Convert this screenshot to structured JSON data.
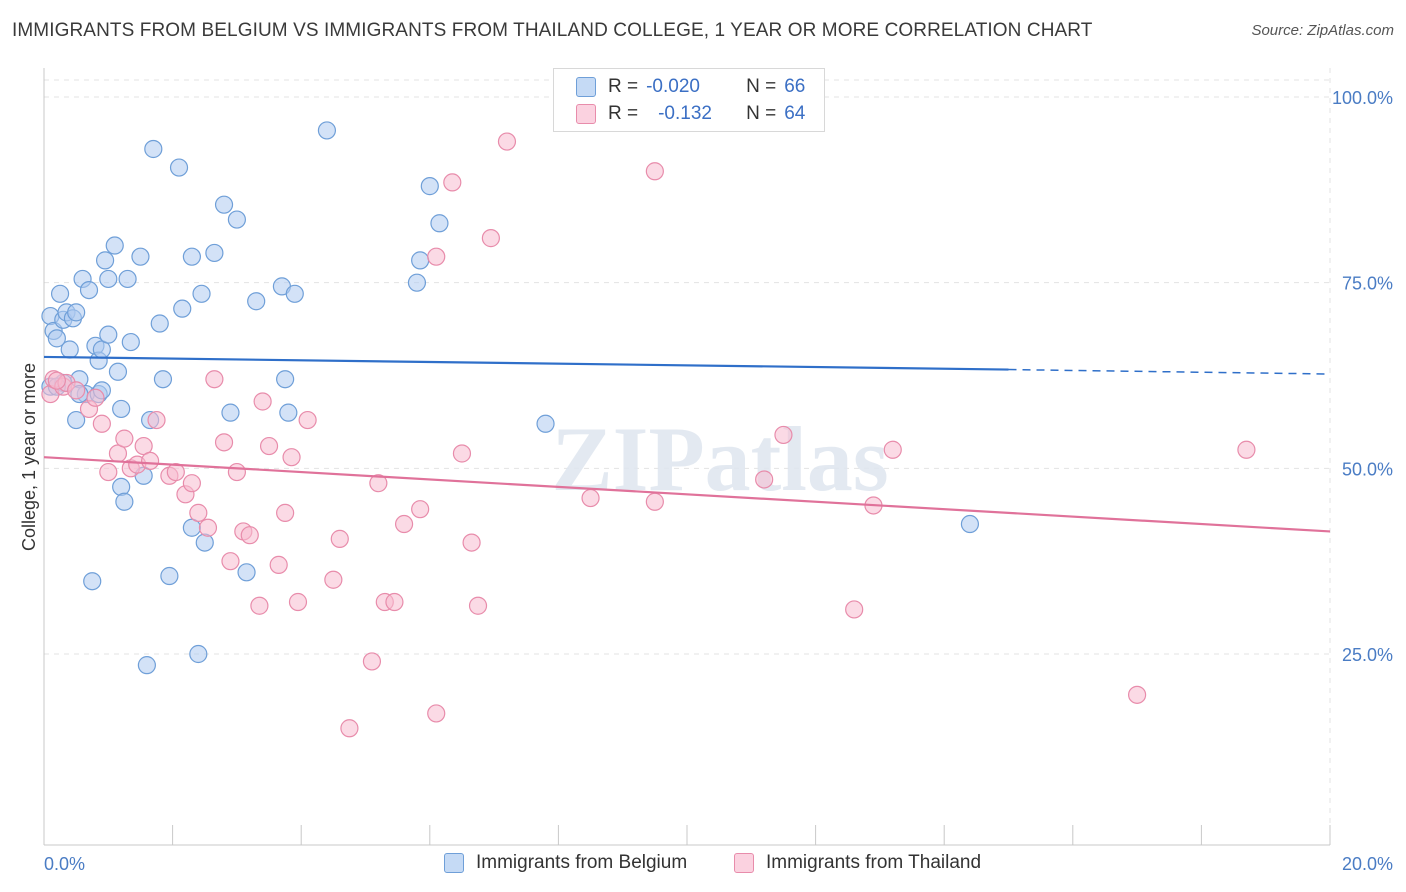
{
  "title": "IMMIGRANTS FROM BELGIUM VS IMMIGRANTS FROM THAILAND COLLEGE, 1 YEAR OR MORE CORRELATION CHART",
  "source": "Source: ZipAtlas.com",
  "watermark": "ZIPatlas",
  "legend": {
    "r_label": "R =",
    "n_label": "N =",
    "belgium": {
      "r": "-0.020",
      "n": "66"
    },
    "thailand": {
      "r": "-0.132",
      "n": "64"
    }
  },
  "colors": {
    "belgium_fill": "#aecbf0",
    "belgium_stroke": "#6f9fd8",
    "belgium_line": "#2f6fc9",
    "thailand_fill": "#f7bcd0",
    "thailand_stroke": "#e88cab",
    "thailand_line": "#e0729a",
    "axis_text": "#4a7cc4",
    "grid": "#e3e3e3"
  },
  "chart_data": {
    "type": "scatter",
    "title": "IMMIGRANTS FROM BELGIUM VS IMMIGRANTS FROM THAILAND COLLEGE, 1 YEAR OR MORE CORRELATION CHART",
    "xlabel": "",
    "ylabel": "College, 1 year or more",
    "xlim": [
      0,
      20
    ],
    "ylim": [
      0,
      105
    ],
    "x_tick_labels": [
      "0.0%",
      "20.0%"
    ],
    "y_ticks": [
      25,
      50,
      75,
      100
    ],
    "y_tick_labels": [
      "25.0%",
      "50.0%",
      "75.0%",
      "100.0%"
    ],
    "series": [
      {
        "name": "Immigrants from Belgium",
        "points": [
          [
            0.1,
            70.5
          ],
          [
            0.15,
            68.5
          ],
          [
            0.2,
            67.5
          ],
          [
            0.25,
            73.5
          ],
          [
            0.3,
            70
          ],
          [
            0.35,
            71
          ],
          [
            0.4,
            66
          ],
          [
            0.45,
            70.2
          ],
          [
            0.5,
            71
          ],
          [
            0.55,
            62
          ],
          [
            0.5,
            56.5
          ],
          [
            0.6,
            75.5
          ],
          [
            0.65,
            60
          ],
          [
            0.7,
            74
          ],
          [
            0.75,
            34.8
          ],
          [
            0.8,
            66.5
          ],
          [
            0.85,
            60
          ],
          [
            0.85,
            64.5
          ],
          [
            0.9,
            66
          ],
          [
            0.95,
            78
          ],
          [
            1.0,
            68
          ],
          [
            1.0,
            75.5
          ],
          [
            1.1,
            80
          ],
          [
            1.15,
            63
          ],
          [
            1.2,
            58
          ],
          [
            1.2,
            47.5
          ],
          [
            1.25,
            45.5
          ],
          [
            1.3,
            75.5
          ],
          [
            1.35,
            67
          ],
          [
            1.5,
            78.5
          ],
          [
            1.55,
            49
          ],
          [
            1.6,
            23.5
          ],
          [
            1.65,
            56.5
          ],
          [
            1.7,
            93
          ],
          [
            1.8,
            69.5
          ],
          [
            1.85,
            62
          ],
          [
            1.95,
            35.5
          ],
          [
            2.1,
            90.5
          ],
          [
            2.15,
            71.5
          ],
          [
            2.3,
            78.5
          ],
          [
            2.3,
            42
          ],
          [
            2.4,
            25
          ],
          [
            2.45,
            73.5
          ],
          [
            2.5,
            40
          ],
          [
            2.65,
            79
          ],
          [
            2.8,
            85.5
          ],
          [
            2.9,
            57.5
          ],
          [
            3.0,
            83.5
          ],
          [
            3.15,
            36
          ],
          [
            3.3,
            72.5
          ],
          [
            3.7,
            74.5
          ],
          [
            3.75,
            62
          ],
          [
            3.8,
            57.5
          ],
          [
            3.9,
            73.5
          ],
          [
            4.4,
            95.5
          ],
          [
            5.8,
            75
          ],
          [
            5.85,
            78
          ],
          [
            6.0,
            88
          ],
          [
            6.15,
            83
          ],
          [
            7.8,
            56
          ],
          [
            14.4,
            42.5
          ],
          [
            0.1,
            61
          ],
          [
            0.3,
            61.5
          ],
          [
            0.2,
            61
          ],
          [
            0.55,
            60
          ],
          [
            0.9,
            60.5
          ]
        ]
      },
      {
        "name": "Immigrants from Thailand",
        "points": [
          [
            0.1,
            60
          ],
          [
            0.15,
            62
          ],
          [
            0.3,
            61
          ],
          [
            0.35,
            61.5
          ],
          [
            0.5,
            60.5
          ],
          [
            0.7,
            58
          ],
          [
            0.8,
            59.5
          ],
          [
            0.9,
            56
          ],
          [
            1.0,
            49.5
          ],
          [
            1.15,
            52
          ],
          [
            1.25,
            54
          ],
          [
            1.35,
            50
          ],
          [
            1.45,
            50.5
          ],
          [
            1.55,
            53
          ],
          [
            1.65,
            51
          ],
          [
            1.75,
            56.5
          ],
          [
            1.95,
            49
          ],
          [
            2.05,
            49.5
          ],
          [
            2.2,
            46.5
          ],
          [
            2.3,
            48
          ],
          [
            2.4,
            44
          ],
          [
            2.55,
            42
          ],
          [
            2.65,
            62
          ],
          [
            2.8,
            53.5
          ],
          [
            2.9,
            37.5
          ],
          [
            3.0,
            49.5
          ],
          [
            3.1,
            41.5
          ],
          [
            3.2,
            41
          ],
          [
            3.35,
            31.5
          ],
          [
            3.4,
            59
          ],
          [
            3.5,
            53
          ],
          [
            3.65,
            37
          ],
          [
            3.75,
            44
          ],
          [
            3.85,
            51.5
          ],
          [
            3.95,
            32
          ],
          [
            4.1,
            56.5
          ],
          [
            4.5,
            35
          ],
          [
            4.6,
            40.5
          ],
          [
            4.75,
            15
          ],
          [
            5.1,
            24
          ],
          [
            5.2,
            48
          ],
          [
            5.3,
            32
          ],
          [
            5.45,
            32
          ],
          [
            5.6,
            42.5
          ],
          [
            5.85,
            44.5
          ],
          [
            6.1,
            78.5
          ],
          [
            6.1,
            17
          ],
          [
            6.35,
            88.5
          ],
          [
            6.5,
            52
          ],
          [
            6.65,
            40
          ],
          [
            6.75,
            31.5
          ],
          [
            6.95,
            81
          ],
          [
            7.2,
            94
          ],
          [
            8.5,
            46
          ],
          [
            9.5,
            90
          ],
          [
            9.5,
            45.5
          ],
          [
            11.2,
            48.5
          ],
          [
            11.5,
            54.5
          ],
          [
            12.6,
            31
          ],
          [
            12.9,
            45
          ],
          [
            13.2,
            52.5
          ],
          [
            17.0,
            19.5
          ],
          [
            18.7,
            52.5
          ],
          [
            0.2,
            61.8
          ]
        ]
      }
    ],
    "trendlines": [
      {
        "series": "Immigrants from Belgium",
        "x": [
          0,
          15
        ],
        "y": [
          65.0,
          63.3
        ],
        "dashed_to": [
          20,
          62.7
        ]
      },
      {
        "series": "Immigrants from Thailand",
        "x": [
          0,
          20
        ],
        "y": [
          51.5,
          41.5
        ]
      }
    ],
    "legend_position": "top-center"
  }
}
